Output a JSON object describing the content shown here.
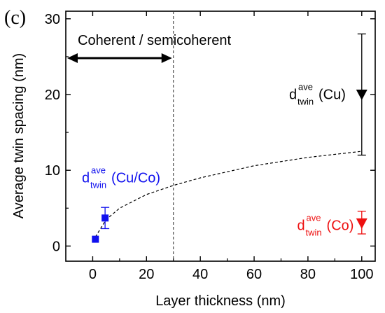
{
  "panel_label": "(c)",
  "chart_data": {
    "type": "scatter",
    "xlabel": "Layer thickness (nm)",
    "ylabel": "Average twin spacing (nm)",
    "xlim": [
      -10,
      105
    ],
    "ylim": [
      -2,
      31
    ],
    "x_ticks": [
      0,
      20,
      40,
      60,
      80,
      100
    ],
    "y_ticks": [
      0,
      10,
      20,
      30
    ],
    "grid": false,
    "series": [
      {
        "name": "d_twin^ave (Cu/Co)",
        "color": "#1010ee",
        "marker": "square",
        "points": [
          {
            "x": 1,
            "y": 0.9,
            "err_low": 0.9,
            "err_high": 0.9
          },
          {
            "x": 4.6,
            "y": 3.7,
            "err_low": 2.3,
            "err_high": 5.1
          }
        ]
      },
      {
        "name": "d_twin^ave (Cu)",
        "color": "#000000",
        "marker": "triangle-down",
        "points": [
          {
            "x": 100,
            "y": 20,
            "err_low": 12,
            "err_high": 28
          }
        ]
      },
      {
        "name": "d_twin^ave (Co)",
        "color": "#ee1010",
        "marker": "triangle-down",
        "points": [
          {
            "x": 100,
            "y": 3,
            "err_low": 1.6,
            "err_high": 4.6
          }
        ]
      }
    ],
    "fit_curve": {
      "style": "dashed",
      "color": "#000000",
      "points": [
        [
          1,
          1.2
        ],
        [
          5,
          3.5
        ],
        [
          10,
          5.0
        ],
        [
          20,
          6.8
        ],
        [
          30,
          8.0
        ],
        [
          40,
          9.0
        ],
        [
          60,
          10.6
        ],
        [
          80,
          11.7
        ],
        [
          100,
          12.5
        ]
      ]
    },
    "vertical_line": {
      "x": 30,
      "style": "dashed"
    },
    "region_annotation": {
      "label": "Coherent / semicoherent",
      "x_from": -10,
      "x_to": 30
    },
    "annotations": [
      {
        "base": "d",
        "sup": "ave",
        "sub": "twin",
        "suffix": " (Cu/Co)",
        "color": "#1010ee",
        "x": -4,
        "y": 8.4
      },
      {
        "base": "d",
        "sup": "ave",
        "sub": "twin",
        "suffix": " (Cu)",
        "color": "#000000",
        "x": 73,
        "y": 19.4
      },
      {
        "base": "d",
        "sup": "ave",
        "sub": "twin",
        "suffix": " (Co)",
        "color": "#ee1010",
        "x": 76,
        "y": 2.1
      }
    ]
  }
}
